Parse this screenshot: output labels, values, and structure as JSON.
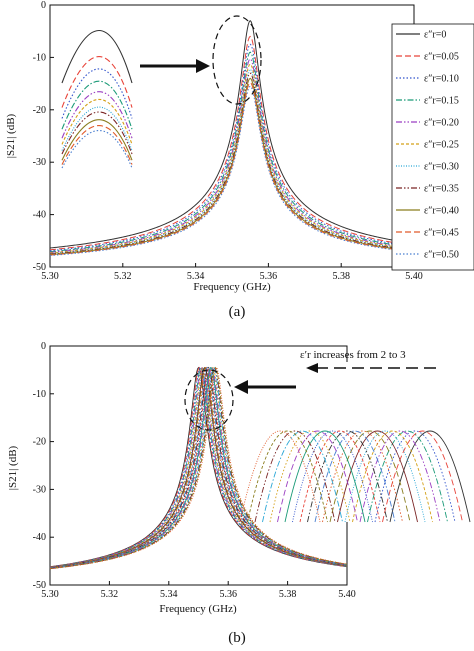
{
  "chart_data": [
    {
      "type": "line",
      "panel_label": "(a)",
      "xlabel": "Frequency (GHz)",
      "ylabel": "|S21| (dB)",
      "xlim": [
        5.3,
        5.4
      ],
      "ylim": [
        -50,
        0
      ],
      "x_ticks": [
        "5.30",
        "5.32",
        "5.34",
        "5.36",
        "5.38",
        "5.40"
      ],
      "y_ticks": [
        "0",
        "-10",
        "-20",
        "-30",
        "-40",
        "-50"
      ],
      "resonance_ghz": 5.355,
      "legend_position": "right",
      "series": [
        {
          "name": "ε″r=0",
          "peak_db": -3.0,
          "color": "#333333",
          "dash": "solid"
        },
        {
          "name": "ε″r=0.05",
          "peak_db": -6.0,
          "color": "#e8443a",
          "dash": "dashed"
        },
        {
          "name": "ε″r=0.10",
          "peak_db": -7.5,
          "color": "#3355cc",
          "dash": "dotted"
        },
        {
          "name": "ε″r=0.15",
          "peak_db": -9.0,
          "color": "#1a9a77",
          "dash": "dashdot"
        },
        {
          "name": "ε″r=0.20",
          "peak_db": -10.3,
          "color": "#9b3fc2",
          "dash": "dashdotdot"
        },
        {
          "name": "ε″r=0.25",
          "peak_db": -11.3,
          "color": "#d4a017",
          "dash": "shortdash"
        },
        {
          "name": "ε″r=0.30",
          "peak_db": -12.3,
          "color": "#2aa7d6",
          "dash": "shortdot"
        },
        {
          "name": "ε″r=0.35",
          "peak_db": -13.0,
          "color": "#7a2424",
          "dash": "dashdotdot"
        },
        {
          "name": "ε″r=0.40",
          "peak_db": -14.0,
          "color": "#8a7d1e",
          "dash": "solid"
        },
        {
          "name": "ε″r=0.45",
          "peak_db": -14.8,
          "color": "#e05a2a",
          "dash": "dashed"
        },
        {
          "name": "ε″r=0.50",
          "peak_db": -15.5,
          "color": "#4a7fd0",
          "dash": "dotted"
        }
      ]
    },
    {
      "type": "line",
      "panel_label": "(b)",
      "xlabel": "Frequency (GHz)",
      "ylabel": "|S21| (dB)",
      "xlim": [
        5.3,
        5.4
      ],
      "ylim": [
        -50,
        0
      ],
      "x_ticks": [
        "5.30",
        "5.32",
        "5.34",
        "5.36",
        "5.38",
        "5.40"
      ],
      "y_ticks": [
        "0",
        "-10",
        "-20",
        "-30",
        "-40",
        "-50"
      ],
      "annotation": "ε′r increases from 2 to 3",
      "resonance_range_ghz": [
        5.35,
        5.356
      ],
      "peak_db": -4.5,
      "curve_count": 21
    }
  ]
}
